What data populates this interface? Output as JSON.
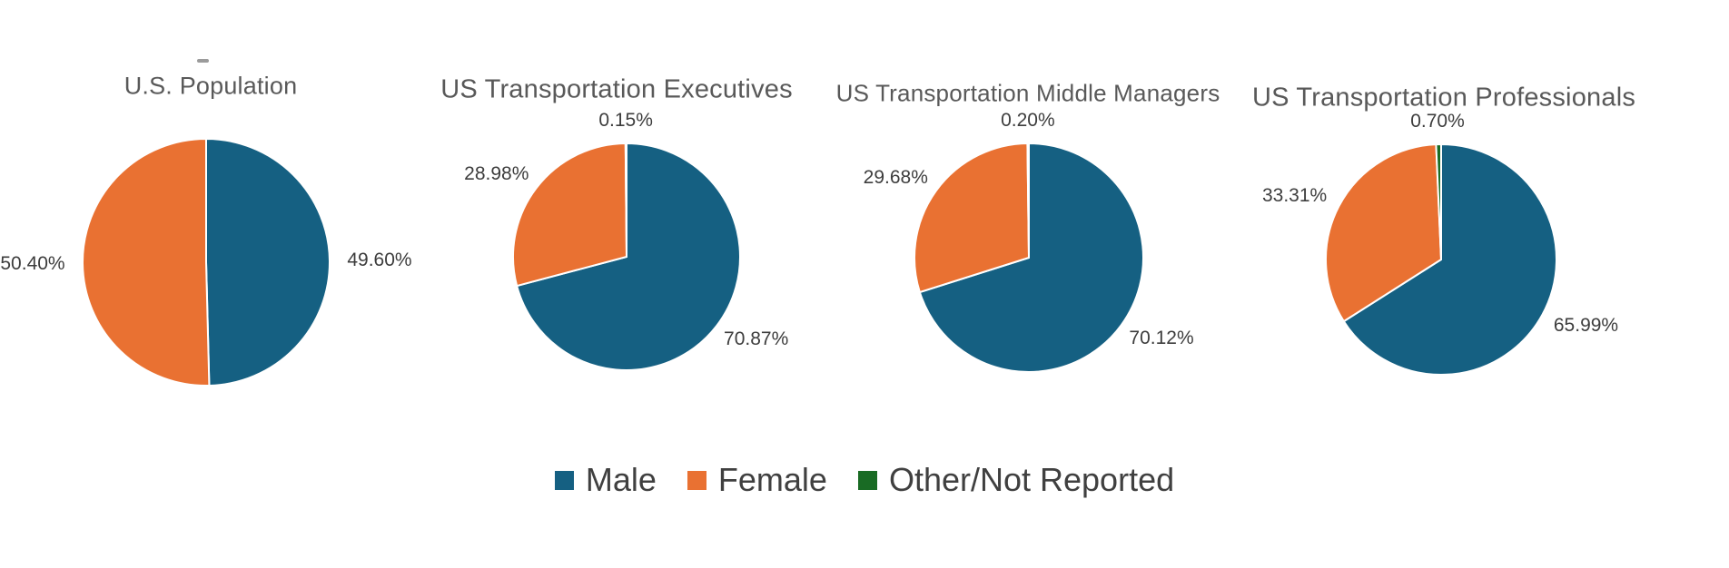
{
  "figure": {
    "background": "#ffffff"
  },
  "palette": {
    "male": "#156082",
    "female": "#E97132",
    "other": "#196B24",
    "title_text": "#595959",
    "label_text": "#3d3d3d",
    "legend_text": "#404040"
  },
  "legend": {
    "position": "bottom-center",
    "items": [
      {
        "label": "Male",
        "color": "#156082"
      },
      {
        "label": "Female",
        "color": "#E97132"
      },
      {
        "label": "Other/Not Reported",
        "color": "#196B24"
      }
    ]
  },
  "chart_data": [
    {
      "type": "pie",
      "title": "U.S. Population",
      "categories": [
        "Male",
        "Female"
      ],
      "values": [
        49.6,
        50.4
      ],
      "labels": [
        "49.60%",
        "50.40%"
      ],
      "colors": [
        "#156082",
        "#E97132"
      ],
      "start_angle": 0,
      "direction": "clockwise",
      "label_position": "outside-end",
      "legend_position": "shared-bottom"
    },
    {
      "type": "pie",
      "title": "US Transportation Executives",
      "categories": [
        "Male",
        "Female",
        "Other/Not Reported"
      ],
      "values": [
        70.87,
        28.98,
        0.15
      ],
      "labels": [
        "70.87%",
        "28.98%",
        "0.15%"
      ],
      "colors": [
        "#156082",
        "#E97132",
        "#196B24"
      ],
      "start_angle": 0,
      "direction": "clockwise",
      "label_position": "outside-end",
      "legend_position": "shared-bottom"
    },
    {
      "type": "pie",
      "title": "US Transportation Middle Managers",
      "categories": [
        "Male",
        "Female",
        "Other/Not Reported"
      ],
      "values": [
        70.12,
        29.68,
        0.2
      ],
      "labels": [
        "70.12%",
        "29.68%",
        "0.20%"
      ],
      "colors": [
        "#156082",
        "#E97132",
        "#196B24"
      ],
      "start_angle": 0,
      "direction": "clockwise",
      "label_position": "outside-end",
      "legend_position": "shared-bottom"
    },
    {
      "type": "pie",
      "title": "US Transportation Professionals",
      "categories": [
        "Male",
        "Female",
        "Other/Not Reported"
      ],
      "values": [
        65.99,
        33.31,
        0.7
      ],
      "labels": [
        "65.99%",
        "33.31%",
        "0.70%"
      ],
      "colors": [
        "#156082",
        "#E97132",
        "#196B24"
      ],
      "start_angle": 0,
      "direction": "clockwise",
      "label_position": "outside-end",
      "legend_position": "shared-bottom"
    }
  ]
}
